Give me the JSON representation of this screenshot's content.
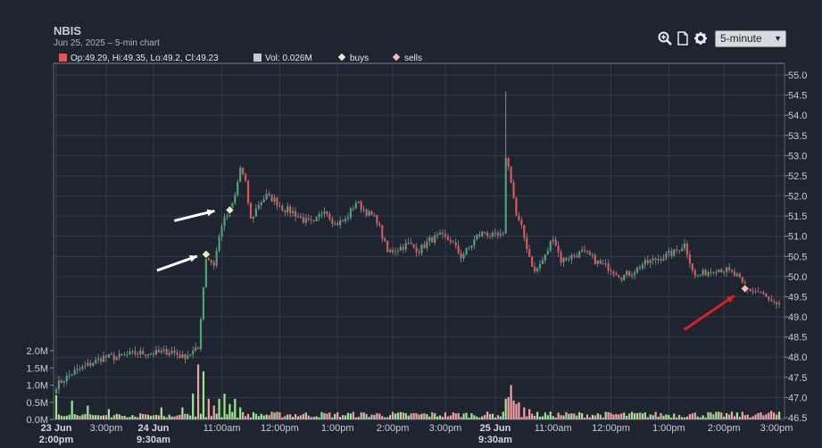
{
  "header": {
    "title": "NBIS",
    "subtitle": "Jun 25, 2025 – 5-min chart"
  },
  "toolbar": {
    "interval": "5-minute",
    "icons": [
      "zoom-icon",
      "document-icon",
      "gear-icon"
    ]
  },
  "legend": {
    "ohlc": "Op:49.29, Hi:49.35, Lo:49.2, Cl:49.23",
    "volume": "Vol: 0.026M",
    "buys": "buys",
    "sells": "sells"
  },
  "colors": {
    "up": "#4fa36e",
    "down": "#e05555",
    "vol_up": "#9ce68e",
    "vol_down": "#f4a0a0",
    "buy_marker": "#d8f3c0",
    "sell_marker": "#f6b8b8",
    "annotation_white": "#ffffff",
    "annotation_red": "#e02020"
  },
  "chart_data": {
    "type": "candlestick",
    "price_axis": {
      "ticks": [
        "55.0",
        "54.5",
        "54.0",
        "53.5",
        "53.0",
        "52.5",
        "52.0",
        "51.5",
        "51.0",
        "50.5",
        "50.0",
        "49.5",
        "49.0",
        "48.5",
        "48.0",
        "47.5",
        "47.0",
        "46.5"
      ],
      "range": [
        46.5,
        55.3
      ]
    },
    "volume_axis": {
      "ticks": [
        "2.0M",
        "1.5M",
        "1.0M",
        "0.5M",
        "0.0M"
      ],
      "range": [
        0,
        2.0
      ]
    },
    "x_labels": [
      {
        "text": "23 Jun",
        "sub": "2:00pm",
        "bold": true
      },
      {
        "text": "3:00pm"
      },
      {
        "text": "24 Jun",
        "sub": "9:30am",
        "bold": true
      },
      {
        "text": "11:00am"
      },
      {
        "text": "12:00pm"
      },
      {
        "text": "1:00pm"
      },
      {
        "text": "2:00pm"
      },
      {
        "text": "3:00pm"
      },
      {
        "text": "25 Jun",
        "sub": "9:30am",
        "bold": true
      },
      {
        "text": "11:00am"
      },
      {
        "text": "12:00pm"
      },
      {
        "text": "1:00pm"
      },
      {
        "text": "2:00pm"
      },
      {
        "text": "3:00pm"
      }
    ],
    "price_path": [
      [
        0,
        47.3
      ],
      [
        6,
        47.6
      ],
      [
        12,
        47.8
      ],
      [
        18,
        48.0
      ],
      [
        24,
        48.0
      ],
      [
        30,
        48.1
      ],
      [
        38,
        48.1
      ],
      [
        44,
        48.15
      ],
      [
        48,
        48.0
      ],
      [
        54,
        48.2
      ],
      [
        55,
        49.0
      ],
      [
        57,
        50.5
      ],
      [
        60,
        50.3
      ],
      [
        63,
        51.3
      ],
      [
        66,
        51.6
      ],
      [
        68,
        52.0
      ],
      [
        70,
        52.7
      ],
      [
        72,
        52.3
      ],
      [
        74,
        51.4
      ],
      [
        77,
        51.8
      ],
      [
        80,
        52.0
      ],
      [
        83,
        51.9
      ],
      [
        86,
        51.7
      ],
      [
        90,
        51.6
      ],
      [
        94,
        51.4
      ],
      [
        98,
        51.3
      ],
      [
        102,
        51.7
      ],
      [
        106,
        51.3
      ],
      [
        110,
        51.4
      ],
      [
        114,
        51.85
      ],
      [
        118,
        51.6
      ],
      [
        122,
        51.4
      ],
      [
        126,
        50.6
      ],
      [
        130,
        50.7
      ],
      [
        134,
        50.8
      ],
      [
        138,
        50.65
      ],
      [
        142,
        50.9
      ],
      [
        146,
        51.0
      ],
      [
        150,
        50.9
      ],
      [
        154,
        50.5
      ],
      [
        157,
        50.7
      ],
      [
        160,
        51.0
      ],
      [
        163,
        51.1
      ],
      [
        166,
        51.0
      ],
      [
        170,
        51.0
      ],
      [
        171,
        53.0
      ],
      [
        173,
        52.4
      ],
      [
        175,
        51.5
      ],
      [
        177,
        51.2
      ],
      [
        180,
        50.5
      ],
      [
        182,
        50.1
      ],
      [
        186,
        50.5
      ],
      [
        189,
        51.0
      ],
      [
        192,
        50.4
      ],
      [
        196,
        50.5
      ],
      [
        200,
        50.6
      ],
      [
        203,
        50.5
      ],
      [
        207,
        50.3
      ],
      [
        211,
        50.2
      ],
      [
        215,
        50.0
      ],
      [
        219,
        50.1
      ],
      [
        223,
        50.3
      ],
      [
        227,
        50.4
      ],
      [
        231,
        50.5
      ],
      [
        235,
        50.6
      ],
      [
        239,
        50.8
      ],
      [
        243,
        50.0
      ],
      [
        247,
        50.1
      ],
      [
        251,
        50.2
      ],
      [
        255,
        50.15
      ],
      [
        259,
        50.0
      ],
      [
        262,
        49.7
      ],
      [
        265,
        49.65
      ],
      [
        268,
        49.6
      ],
      [
        271,
        49.4
      ],
      [
        274,
        49.25
      ]
    ],
    "volume_bursts": [
      [
        0,
        0.7
      ],
      [
        6,
        0.55
      ],
      [
        12,
        0.4
      ],
      [
        20,
        0.3
      ],
      [
        40,
        0.35
      ],
      [
        48,
        0.35
      ],
      [
        52,
        0.75
      ],
      [
        54,
        1.6
      ],
      [
        56,
        1.4
      ],
      [
        58,
        0.6
      ],
      [
        60,
        0.4
      ],
      [
        62,
        0.6
      ],
      [
        64,
        0.75
      ],
      [
        66,
        0.45
      ],
      [
        68,
        0.6
      ],
      [
        70,
        0.35
      ],
      [
        171,
        0.6
      ],
      [
        172,
        0.65
      ],
      [
        173,
        1.0
      ],
      [
        174,
        0.55
      ],
      [
        175,
        0.45
      ],
      [
        176,
        0.5
      ],
      [
        178,
        0.35
      ],
      [
        180,
        0.3
      ],
      [
        272,
        0.25
      ],
      [
        273,
        0.2
      ]
    ],
    "buys": [
      {
        "bar": 57,
        "price": 50.55
      },
      {
        "bar": 66,
        "price": 51.65
      }
    ],
    "sells": [
      {
        "bar": 262,
        "price": 49.7
      }
    ],
    "annotations": [
      {
        "type": "arrow",
        "color": "white",
        "points_to": "buy",
        "bar": 57
      },
      {
        "type": "arrow",
        "color": "white",
        "points_to": "buy",
        "bar": 66
      },
      {
        "type": "arrow",
        "color": "red",
        "points_to": "sell",
        "bar": 262
      }
    ]
  }
}
